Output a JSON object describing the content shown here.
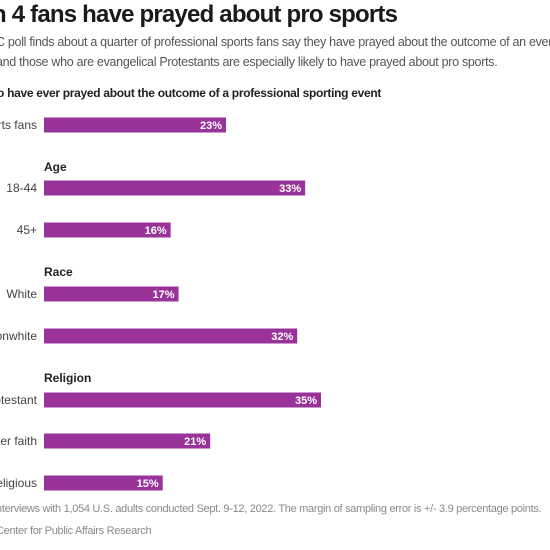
{
  "title": "n 4 fans have prayed about pro sports",
  "subtitle_lines": [
    "C poll finds about a quarter of professional sports fans say they have prayed about the outcome of an event. Y",
    "and those who are evangelical Protestants are especially likely to have prayed about pro sports."
  ],
  "footer": {
    "note": "nterviews with 1,054 U.S. adults conducted Sept. 9-12, 2022. The margin of sampling error is +/- 3.9 percentage points.",
    "source": "Center for Public Affairs Research"
  },
  "chart_data": {
    "type": "bar",
    "orientation": "horizontal",
    "title": "o have ever prayed about the outcome of a professional sporting event",
    "bar_color": "#993399",
    "label_color": "#ffffff",
    "value_suffix": "%",
    "xlim": [
      0,
      100
    ],
    "groups": [
      {
        "heading": "",
        "bars": [
          {
            "label": "orts fans",
            "value": 23
          }
        ]
      },
      {
        "heading": "Age",
        "bars": [
          {
            "label": "18-44",
            "value": 33
          },
          {
            "label": "45+",
            "value": 16
          }
        ]
      },
      {
        "heading": "Race",
        "bars": [
          {
            "label": "White",
            "value": 17
          },
          {
            "label": "onwhite",
            "value": 32
          }
        ]
      },
      {
        "heading": "Religion",
        "bars": [
          {
            "label": "rotestant",
            "value": 35
          },
          {
            "label": "her faith",
            "value": 21
          },
          {
            "label": "religious",
            "value": 15
          }
        ]
      }
    ]
  }
}
